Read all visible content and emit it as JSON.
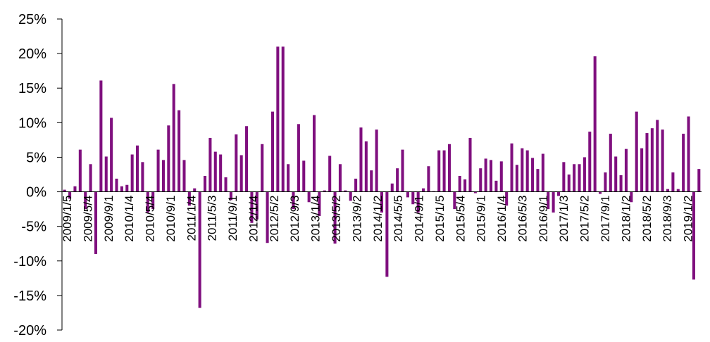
{
  "chart_data": {
    "type": "bar",
    "title": "",
    "xlabel": "",
    "ylabel": "",
    "ylim": [
      -20,
      25
    ],
    "y_unit": "%",
    "y_ticks": [
      25,
      20,
      15,
      10,
      5,
      0,
      -5,
      -10,
      -15,
      -20
    ],
    "y_tick_labels": [
      "25%",
      "20%",
      "15%",
      "10%",
      "5%",
      "0%",
      "-5%",
      "-10%",
      "-15%",
      "-20%"
    ],
    "x_tick_labels": [
      "2009/1/5",
      "2009/5/4",
      "2009/9/1",
      "2010/1/4",
      "2010/5/4",
      "2010/9/1",
      "2011/1/4",
      "2011/5/3",
      "2011/9/1",
      "2012/1/4",
      "2012/5/2",
      "2012/9/3",
      "2013/1/4",
      "2013/5/2",
      "2013/9/2",
      "2014/1/2",
      "2014/5/5",
      "2014/9/1",
      "2015/1/5",
      "2015/5/4",
      "2015/9/1",
      "2016/1/4",
      "2016/5/3",
      "2016/9/1",
      "2017/1/3",
      "2017/5/2",
      "2017/9/1",
      "2018/1/2",
      "2018/5/2",
      "2018/9/3",
      "2019/1/2"
    ],
    "grid": false,
    "legend": "none",
    "bar_color": "#7f0f7e",
    "values": [
      0.3,
      -1.0,
      0.8,
      6.1,
      -2.5,
      4.0,
      -9.0,
      16.1,
      5.1,
      10.7,
      1.9,
      0.8,
      1.0,
      5.4,
      6.7,
      4.3,
      -3.0,
      -2.5,
      6.1,
      4.6,
      9.6,
      15.6,
      11.8,
      4.6,
      -2.0,
      0.5,
      -16.8,
      2.3,
      7.8,
      5.8,
      5.4,
      2.1,
      -1.2,
      8.3,
      5.3,
      9.5,
      -4.5,
      -4.0,
      6.9,
      -7.4,
      11.6,
      21.0,
      21.0,
      4.0,
      -2.5,
      9.8,
      4.5,
      -1.5,
      11.1,
      -3.5,
      0.2,
      5.2,
      -7.5,
      4.0,
      0.2,
      -1.3,
      1.9,
      9.3,
      7.3,
      3.1,
      9.0,
      -3.0,
      -12.3,
      1.2,
      3.4,
      6.1,
      -0.8,
      -1.8,
      -3.0,
      0.5,
      3.7,
      0.1,
      6.0,
      6.0,
      6.9,
      -2.5,
      2.3,
      1.8,
      7.8,
      -0.2,
      3.4,
      4.8,
      4.6,
      1.6,
      4.4,
      -2.0,
      7.0,
      3.9,
      6.3,
      6.0,
      4.9,
      3.3,
      5.5,
      -2.5,
      -3.0,
      -0.6,
      4.3,
      2.5,
      4.0,
      4.0,
      5.0,
      8.7,
      19.6,
      -0.3,
      2.8,
      8.4,
      5.1,
      2.4,
      6.2,
      -1.5,
      11.6,
      6.3,
      8.5,
      9.2,
      10.4,
      9.0,
      0.4,
      2.8,
      0.4,
      8.4,
      10.9,
      -12.7,
      3.3
    ]
  }
}
